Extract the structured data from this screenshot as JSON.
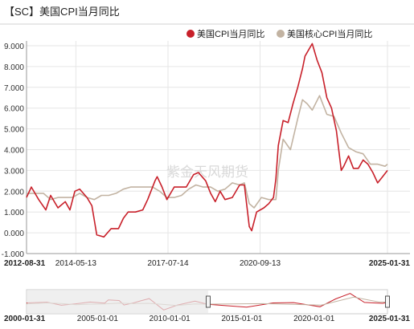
{
  "chart_data": {
    "type": "line",
    "title": "【SC】美国CPI当月同比",
    "watermark": "紫金天风期货",
    "yticks": [
      "9.000",
      "8.000",
      "7.000",
      "6.000",
      "5.000",
      "4.000",
      "3.000",
      "2.000",
      "1.000",
      "0.000",
      "-1.000"
    ],
    "ylim": [
      -1,
      9
    ],
    "xlim": [
      "2012-08-31",
      "2025-01-31"
    ],
    "xticks": [
      "2012-08-31",
      "2014-05-13",
      "2017-07-14",
      "2020-09-13",
      "2025-01-31"
    ],
    "series": [
      {
        "name": "美国CPI当月同比",
        "color": "#c8202a",
        "points": [
          [
            "2012-08-31",
            1.7
          ],
          [
            "2012-10-31",
            2.2
          ],
          [
            "2013-01-31",
            1.6
          ],
          [
            "2013-04-30",
            1.1
          ],
          [
            "2013-06-30",
            1.8
          ],
          [
            "2013-09-30",
            1.2
          ],
          [
            "2013-12-31",
            1.5
          ],
          [
            "2014-02-28",
            1.1
          ],
          [
            "2014-04-30",
            2.0
          ],
          [
            "2014-06-30",
            2.1
          ],
          [
            "2014-09-30",
            1.7
          ],
          [
            "2014-11-30",
            1.3
          ],
          [
            "2015-01-31",
            -0.1
          ],
          [
            "2015-04-30",
            -0.2
          ],
          [
            "2015-07-31",
            0.2
          ],
          [
            "2015-10-31",
            0.2
          ],
          [
            "2015-12-31",
            0.7
          ],
          [
            "2016-02-29",
            1.0
          ],
          [
            "2016-05-31",
            1.0
          ],
          [
            "2016-08-31",
            1.1
          ],
          [
            "2016-10-31",
            1.6
          ],
          [
            "2017-01-31",
            2.5
          ],
          [
            "2017-02-28",
            2.7
          ],
          [
            "2017-04-30",
            2.2
          ],
          [
            "2017-06-30",
            1.6
          ],
          [
            "2017-09-30",
            2.2
          ],
          [
            "2017-11-30",
            2.2
          ],
          [
            "2018-02-28",
            2.2
          ],
          [
            "2018-05-31",
            2.8
          ],
          [
            "2018-07-31",
            2.9
          ],
          [
            "2018-10-31",
            2.5
          ],
          [
            "2018-12-31",
            1.9
          ],
          [
            "2019-02-28",
            1.5
          ],
          [
            "2019-04-30",
            2.0
          ],
          [
            "2019-06-30",
            1.6
          ],
          [
            "2019-09-30",
            1.7
          ],
          [
            "2019-12-31",
            2.3
          ],
          [
            "2020-02-29",
            2.3
          ],
          [
            "2020-04-30",
            0.3
          ],
          [
            "2020-05-31",
            0.1
          ],
          [
            "2020-07-31",
            1.0
          ],
          [
            "2020-10-31",
            1.2
          ],
          [
            "2020-12-31",
            1.4
          ],
          [
            "2021-02-28",
            1.7
          ],
          [
            "2021-03-31",
            2.6
          ],
          [
            "2021-04-30",
            4.2
          ],
          [
            "2021-06-30",
            5.4
          ],
          [
            "2021-08-31",
            5.3
          ],
          [
            "2021-10-31",
            6.2
          ],
          [
            "2021-12-31",
            7.0
          ],
          [
            "2022-02-28",
            7.9
          ],
          [
            "2022-03-31",
            8.5
          ],
          [
            "2022-06-30",
            9.1
          ],
          [
            "2022-08-31",
            8.3
          ],
          [
            "2022-10-31",
            7.7
          ],
          [
            "2022-12-31",
            6.5
          ],
          [
            "2023-02-28",
            6.0
          ],
          [
            "2023-04-30",
            4.9
          ],
          [
            "2023-06-30",
            3.0
          ],
          [
            "2023-07-31",
            3.2
          ],
          [
            "2023-09-30",
            3.7
          ],
          [
            "2023-11-30",
            3.1
          ],
          [
            "2024-01-31",
            3.1
          ],
          [
            "2024-03-31",
            3.5
          ],
          [
            "2024-05-31",
            3.3
          ],
          [
            "2024-07-31",
            2.9
          ],
          [
            "2024-09-30",
            2.4
          ],
          [
            "2024-11-30",
            2.7
          ],
          [
            "2025-01-31",
            3.0
          ]
        ]
      },
      {
        "name": "美国核心CPI当月同比",
        "color": "#c2b3a2",
        "points": [
          [
            "2012-08-31",
            1.9
          ],
          [
            "2012-11-30",
            1.9
          ],
          [
            "2013-03-31",
            1.9
          ],
          [
            "2013-06-30",
            1.6
          ],
          [
            "2013-09-30",
            1.7
          ],
          [
            "2013-12-31",
            1.7
          ],
          [
            "2014-03-31",
            1.7
          ],
          [
            "2014-06-30",
            1.9
          ],
          [
            "2014-09-30",
            1.7
          ],
          [
            "2014-12-31",
            1.6
          ],
          [
            "2015-03-31",
            1.8
          ],
          [
            "2015-06-30",
            1.8
          ],
          [
            "2015-09-30",
            1.9
          ],
          [
            "2015-12-31",
            2.1
          ],
          [
            "2016-03-31",
            2.2
          ],
          [
            "2016-06-30",
            2.2
          ],
          [
            "2016-09-30",
            2.2
          ],
          [
            "2016-12-31",
            2.2
          ],
          [
            "2017-03-31",
            2.0
          ],
          [
            "2017-06-30",
            1.7
          ],
          [
            "2017-09-30",
            1.7
          ],
          [
            "2017-12-31",
            1.8
          ],
          [
            "2018-03-31",
            2.1
          ],
          [
            "2018-06-30",
            2.3
          ],
          [
            "2018-09-30",
            2.2
          ],
          [
            "2018-12-31",
            2.2
          ],
          [
            "2019-03-31",
            2.0
          ],
          [
            "2019-06-30",
            2.1
          ],
          [
            "2019-09-30",
            2.4
          ],
          [
            "2019-12-31",
            2.3
          ],
          [
            "2020-02-29",
            2.4
          ],
          [
            "2020-04-30",
            1.4
          ],
          [
            "2020-06-30",
            1.2
          ],
          [
            "2020-09-30",
            1.7
          ],
          [
            "2020-12-31",
            1.6
          ],
          [
            "2021-03-31",
            1.6
          ],
          [
            "2021-04-30",
            3.0
          ],
          [
            "2021-06-30",
            4.5
          ],
          [
            "2021-09-30",
            4.0
          ],
          [
            "2021-12-31",
            5.5
          ],
          [
            "2022-02-28",
            6.4
          ],
          [
            "2022-04-30",
            6.2
          ],
          [
            "2022-06-30",
            5.9
          ],
          [
            "2022-09-30",
            6.6
          ],
          [
            "2022-12-31",
            5.7
          ],
          [
            "2023-03-31",
            5.6
          ],
          [
            "2023-06-30",
            4.8
          ],
          [
            "2023-09-30",
            4.1
          ],
          [
            "2023-12-31",
            3.9
          ],
          [
            "2024-03-31",
            3.8
          ],
          [
            "2024-06-30",
            3.3
          ],
          [
            "2024-09-30",
            3.3
          ],
          [
            "2024-12-31",
            3.2
          ],
          [
            "2025-01-31",
            3.3
          ]
        ]
      }
    ],
    "navigator": {
      "xlim": [
        "2000-01-31",
        "2025-01-31"
      ],
      "xticks": [
        "2000-01-31",
        "2005-01-01",
        "2010-01-01",
        "2015-01-01",
        "2020-01-01",
        "2025-01-31"
      ],
      "selection": [
        "2012-08-31",
        "2025-01-31"
      ],
      "series": [
        {
          "name": "美国CPI当月同比",
          "color": "#c8202a",
          "points": [
            [
              "2000-01-31",
              2.7
            ],
            [
              "2001-06-30",
              3.2
            ],
            [
              "2002-06-30",
              1.1
            ],
            [
              "2003-06-30",
              2.1
            ],
            [
              "2004-06-30",
              3.3
            ],
            [
              "2005-06-30",
              2.5
            ],
            [
              "2005-09-30",
              4.7
            ],
            [
              "2006-06-30",
              4.3
            ],
            [
              "2006-10-31",
              1.3
            ],
            [
              "2007-06-30",
              2.7
            ],
            [
              "2007-12-31",
              4.1
            ],
            [
              "2008-07-31",
              5.6
            ],
            [
              "2009-07-31",
              -2.1
            ],
            [
              "2010-06-30",
              1.1
            ],
            [
              "2011-09-30",
              3.9
            ],
            [
              "2012-08-31",
              1.7
            ],
            [
              "2015-04-30",
              -0.2
            ],
            [
              "2017-02-28",
              2.7
            ],
            [
              "2018-07-31",
              2.9
            ],
            [
              "2020-05-31",
              0.1
            ],
            [
              "2021-06-30",
              5.4
            ],
            [
              "2022-06-30",
              9.1
            ],
            [
              "2023-06-30",
              3.0
            ],
            [
              "2024-09-30",
              2.4
            ],
            [
              "2025-01-31",
              3.0
            ]
          ]
        },
        {
          "name": "美国核心CPI当月同比",
          "color": "#c2b3a2",
          "points": [
            [
              "2000-01-31",
              2.0
            ],
            [
              "2001-06-30",
              2.7
            ],
            [
              "2002-06-30",
              2.3
            ],
            [
              "2003-06-30",
              1.5
            ],
            [
              "2004-06-30",
              1.9
            ],
            [
              "2005-06-30",
              2.0
            ],
            [
              "2006-06-30",
              2.6
            ],
            [
              "2007-06-30",
              2.2
            ],
            [
              "2008-06-30",
              2.4
            ],
            [
              "2009-06-30",
              1.7
            ],
            [
              "2010-06-30",
              0.9
            ],
            [
              "2011-09-30",
              2.0
            ],
            [
              "2012-08-31",
              1.9
            ],
            [
              "2016-06-30",
              2.2
            ],
            [
              "2020-06-30",
              1.2
            ],
            [
              "2022-09-30",
              6.6
            ],
            [
              "2024-06-30",
              3.3
            ],
            [
              "2025-01-31",
              3.3
            ]
          ]
        }
      ]
    }
  }
}
